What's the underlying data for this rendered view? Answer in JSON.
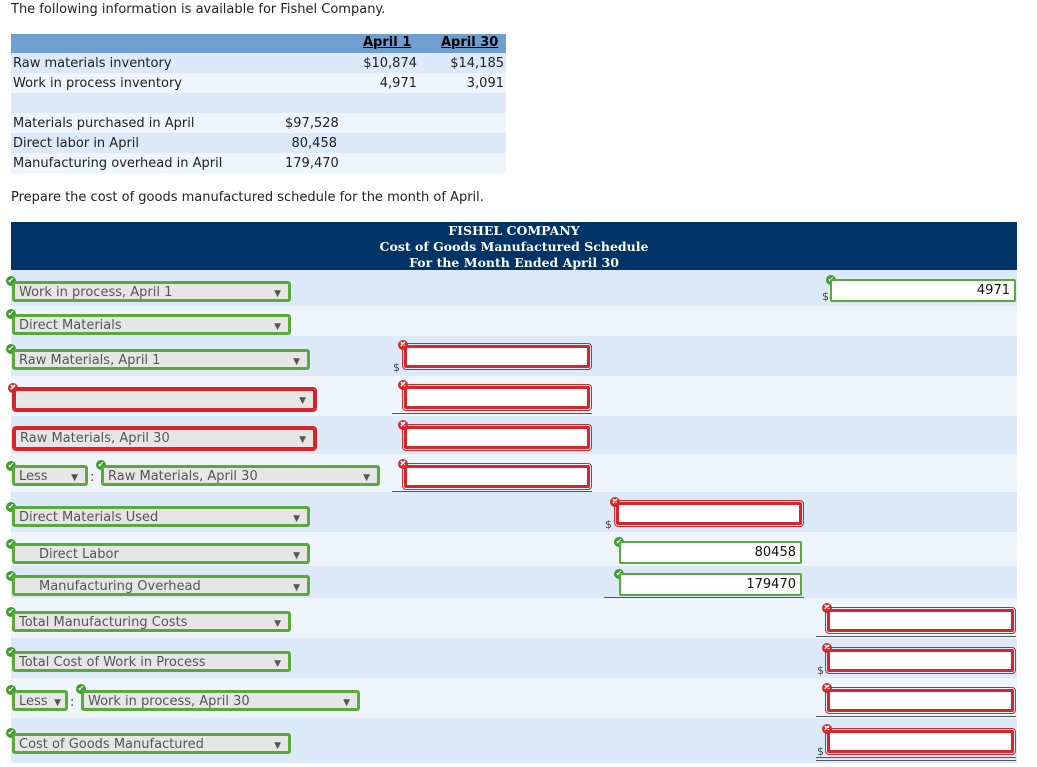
{
  "intro": "The following information is available for Fishel Company.",
  "info": {
    "col1": "April 1",
    "col2": "April 30",
    "rows": [
      {
        "label": "Raw materials inventory",
        "v1": "$10,874",
        "v2": "$14,185"
      },
      {
        "label": "Work in process inventory",
        "v1": "4,971",
        "v2": "3,091"
      }
    ],
    "rows2": [
      {
        "label": "Materials purchased in April",
        "v": "$97,528"
      },
      {
        "label": "Direct labor in April",
        "v": "80,458"
      },
      {
        "label": "Manufacturing overhead in April",
        "v": "179,470"
      }
    ]
  },
  "prepare": "Prepare the cost of goods manufactured schedule for the month of April.",
  "schedule": {
    "company": "FISHEL COMPANY",
    "title": "Cost of Goods Manufactured Schedule",
    "period": "For the Month Ended April 30",
    "selects": {
      "wip_april1": "Work in process, April 1",
      "direct_materials": "Direct Materials",
      "raw_april1": "Raw Materials, April 1",
      "blank": "",
      "raw_april30_a": "Raw Materials, April 30",
      "less1": "Less",
      "raw_april30_b": "Raw Materials, April 30",
      "dm_used": "Direct Materials Used",
      "direct_labor": "Direct Labor",
      "mfg_overhead": "Manufacturing Overhead",
      "total_mfg": "Total Manufacturing Costs",
      "total_wip": "Total Cost of Work in Process",
      "less2": "Less",
      "wip_april30": "Work in process, April 30",
      "cogm": "Cost of Goods Manufactured"
    },
    "inputs": {
      "wip_april1": "4971",
      "raw_april1": "",
      "blank_amt": "",
      "raw_april30_a": "",
      "raw_april30_b": "",
      "dm_used": "",
      "direct_labor": "80458",
      "mfg_overhead": "179470",
      "total_mfg": "",
      "total_wip": "",
      "wip_april30": "",
      "cogm": ""
    },
    "dollar": "$",
    "arrow": "▼",
    "check": "✔",
    "cross": "✖",
    "colon": ":"
  },
  "colors": {
    "header_bg": "#003466",
    "info_header": "#6f9fd0",
    "correct": "#5aaa3a",
    "wrong": "#d9252a",
    "row_a": "#dbe9f8",
    "row_b": "#eef5fc"
  }
}
